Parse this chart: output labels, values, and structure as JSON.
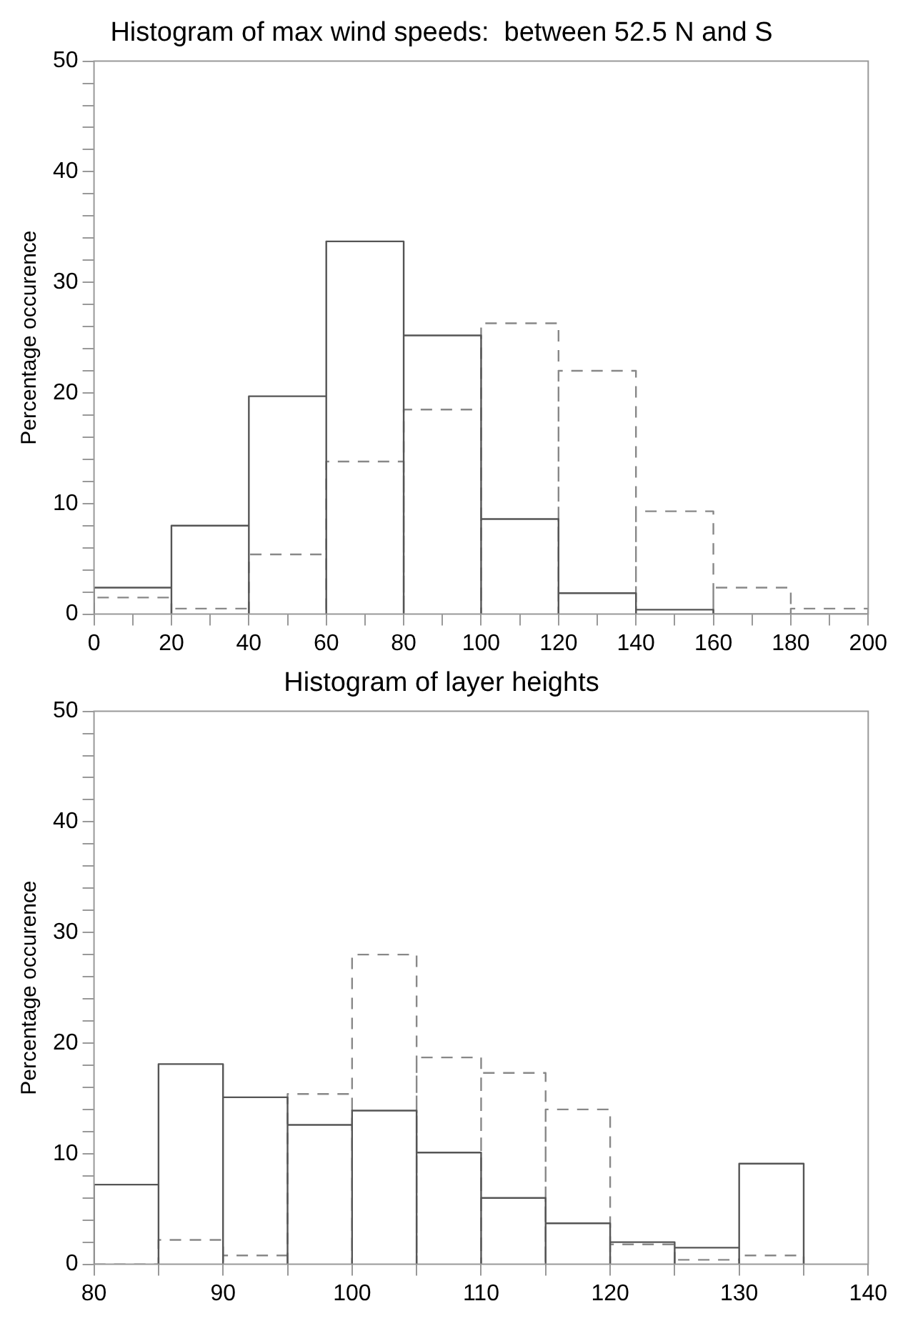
{
  "chart_data": [
    {
      "type": "histogram",
      "title": "Histogram of max wind speeds:  between 52.5 N and S",
      "ylabel": "Percentage occurence",
      "bins": [
        0,
        20,
        40,
        60,
        80,
        100,
        120,
        140,
        160,
        180,
        200
      ],
      "series": [
        {
          "color": "#555555",
          "line_style": "solid",
          "values": [
            2.4,
            8.0,
            19.7,
            33.7,
            25.2,
            8.6,
            1.9,
            0.4,
            0,
            0
          ]
        },
        {
          "color": "#888888",
          "line_style": "dashed",
          "values": [
            1.5,
            0.5,
            5.4,
            13.8,
            18.5,
            26.3,
            22.0,
            9.3,
            2.4,
            0.5
          ]
        }
      ],
      "xlim": [
        0,
        200
      ],
      "xticks": [
        0,
        {
          "value": 10,
          "label": null
        },
        20,
        {
          "value": 30,
          "label": null
        },
        40,
        {
          "value": 50,
          "label": null
        },
        60,
        {
          "value": 70,
          "label": null
        },
        80,
        {
          "value": 90,
          "label": null
        },
        100,
        {
          "value": 110,
          "label": null
        },
        120,
        {
          "value": 130,
          "label": null
        },
        140,
        {
          "value": 150,
          "label": null
        },
        160,
        {
          "value": 170,
          "label": null
        },
        180,
        {
          "value": 190,
          "label": null
        },
        200
      ],
      "ylim": [
        0,
        50
      ],
      "yticks": [
        0,
        {
          "value": 2,
          "label": null
        },
        {
          "value": 4,
          "label": null
        },
        {
          "value": 6,
          "label": null
        },
        {
          "value": 8,
          "label": null
        },
        10,
        {
          "value": 12,
          "label": null
        },
        {
          "value": 14,
          "label": null
        },
        {
          "value": 16,
          "label": null
        },
        {
          "value": 18,
          "label": null
        },
        20,
        {
          "value": 22,
          "label": null
        },
        {
          "value": 24,
          "label": null
        },
        {
          "value": 26,
          "label": null
        },
        {
          "value": 28,
          "label": null
        },
        30,
        {
          "value": 32,
          "label": null
        },
        {
          "value": 34,
          "label": null
        },
        {
          "value": 36,
          "label": null
        },
        {
          "value": 38,
          "label": null
        },
        40,
        {
          "value": 42,
          "label": null
        },
        {
          "value": 44,
          "label": null
        },
        {
          "value": 46,
          "label": null
        },
        {
          "value": 48,
          "label": null
        },
        50
      ]
    },
    {
      "type": "histogram",
      "title": "Histogram of layer heights",
      "ylabel": "Percentage occurence",
      "bins": [
        80,
        85,
        90,
        95,
        100,
        105,
        110,
        115,
        120,
        125,
        130,
        135
      ],
      "series": [
        {
          "color": "#555555",
          "line_style": "solid",
          "values": [
            7.2,
            18.1,
            15.1,
            12.6,
            13.9,
            10.1,
            6.0,
            3.7,
            2.0,
            1.5,
            9.1
          ]
        },
        {
          "color": "#888888",
          "line_style": "dashed",
          "values": [
            0,
            2.2,
            0.8,
            15.4,
            28.0,
            18.7,
            17.3,
            14.0,
            1.8,
            0.4,
            0.8
          ]
        }
      ],
      "xlim": [
        80,
        140
      ],
      "xticks": [
        80,
        {
          "value": 85,
          "label": null
        },
        90,
        {
          "value": 95,
          "label": null
        },
        100,
        {
          "value": 105,
          "label": null
        },
        110,
        {
          "value": 115,
          "label": null
        },
        120,
        {
          "value": 125,
          "label": null
        },
        130,
        {
          "value": 135,
          "label": null
        },
        140
      ],
      "ylim": [
        0,
        50
      ],
      "yticks": [
        0,
        {
          "value": 2,
          "label": null
        },
        {
          "value": 4,
          "label": null
        },
        {
          "value": 6,
          "label": null
        },
        {
          "value": 8,
          "label": null
        },
        10,
        {
          "value": 12,
          "label": null
        },
        {
          "value": 14,
          "label": null
        },
        {
          "value": 16,
          "label": null
        },
        {
          "value": 18,
          "label": null
        },
        20,
        {
          "value": 22,
          "label": null
        },
        {
          "value": 24,
          "label": null
        },
        {
          "value": 26,
          "label": null
        },
        {
          "value": 28,
          "label": null
        },
        30,
        {
          "value": 32,
          "label": null
        },
        {
          "value": 34,
          "label": null
        },
        {
          "value": 36,
          "label": null
        },
        {
          "value": 38,
          "label": null
        },
        40,
        {
          "value": 42,
          "label": null
        },
        {
          "value": 44,
          "label": null
        },
        {
          "value": 46,
          "label": null
        },
        {
          "value": 48,
          "label": null
        },
        50
      ]
    }
  ]
}
